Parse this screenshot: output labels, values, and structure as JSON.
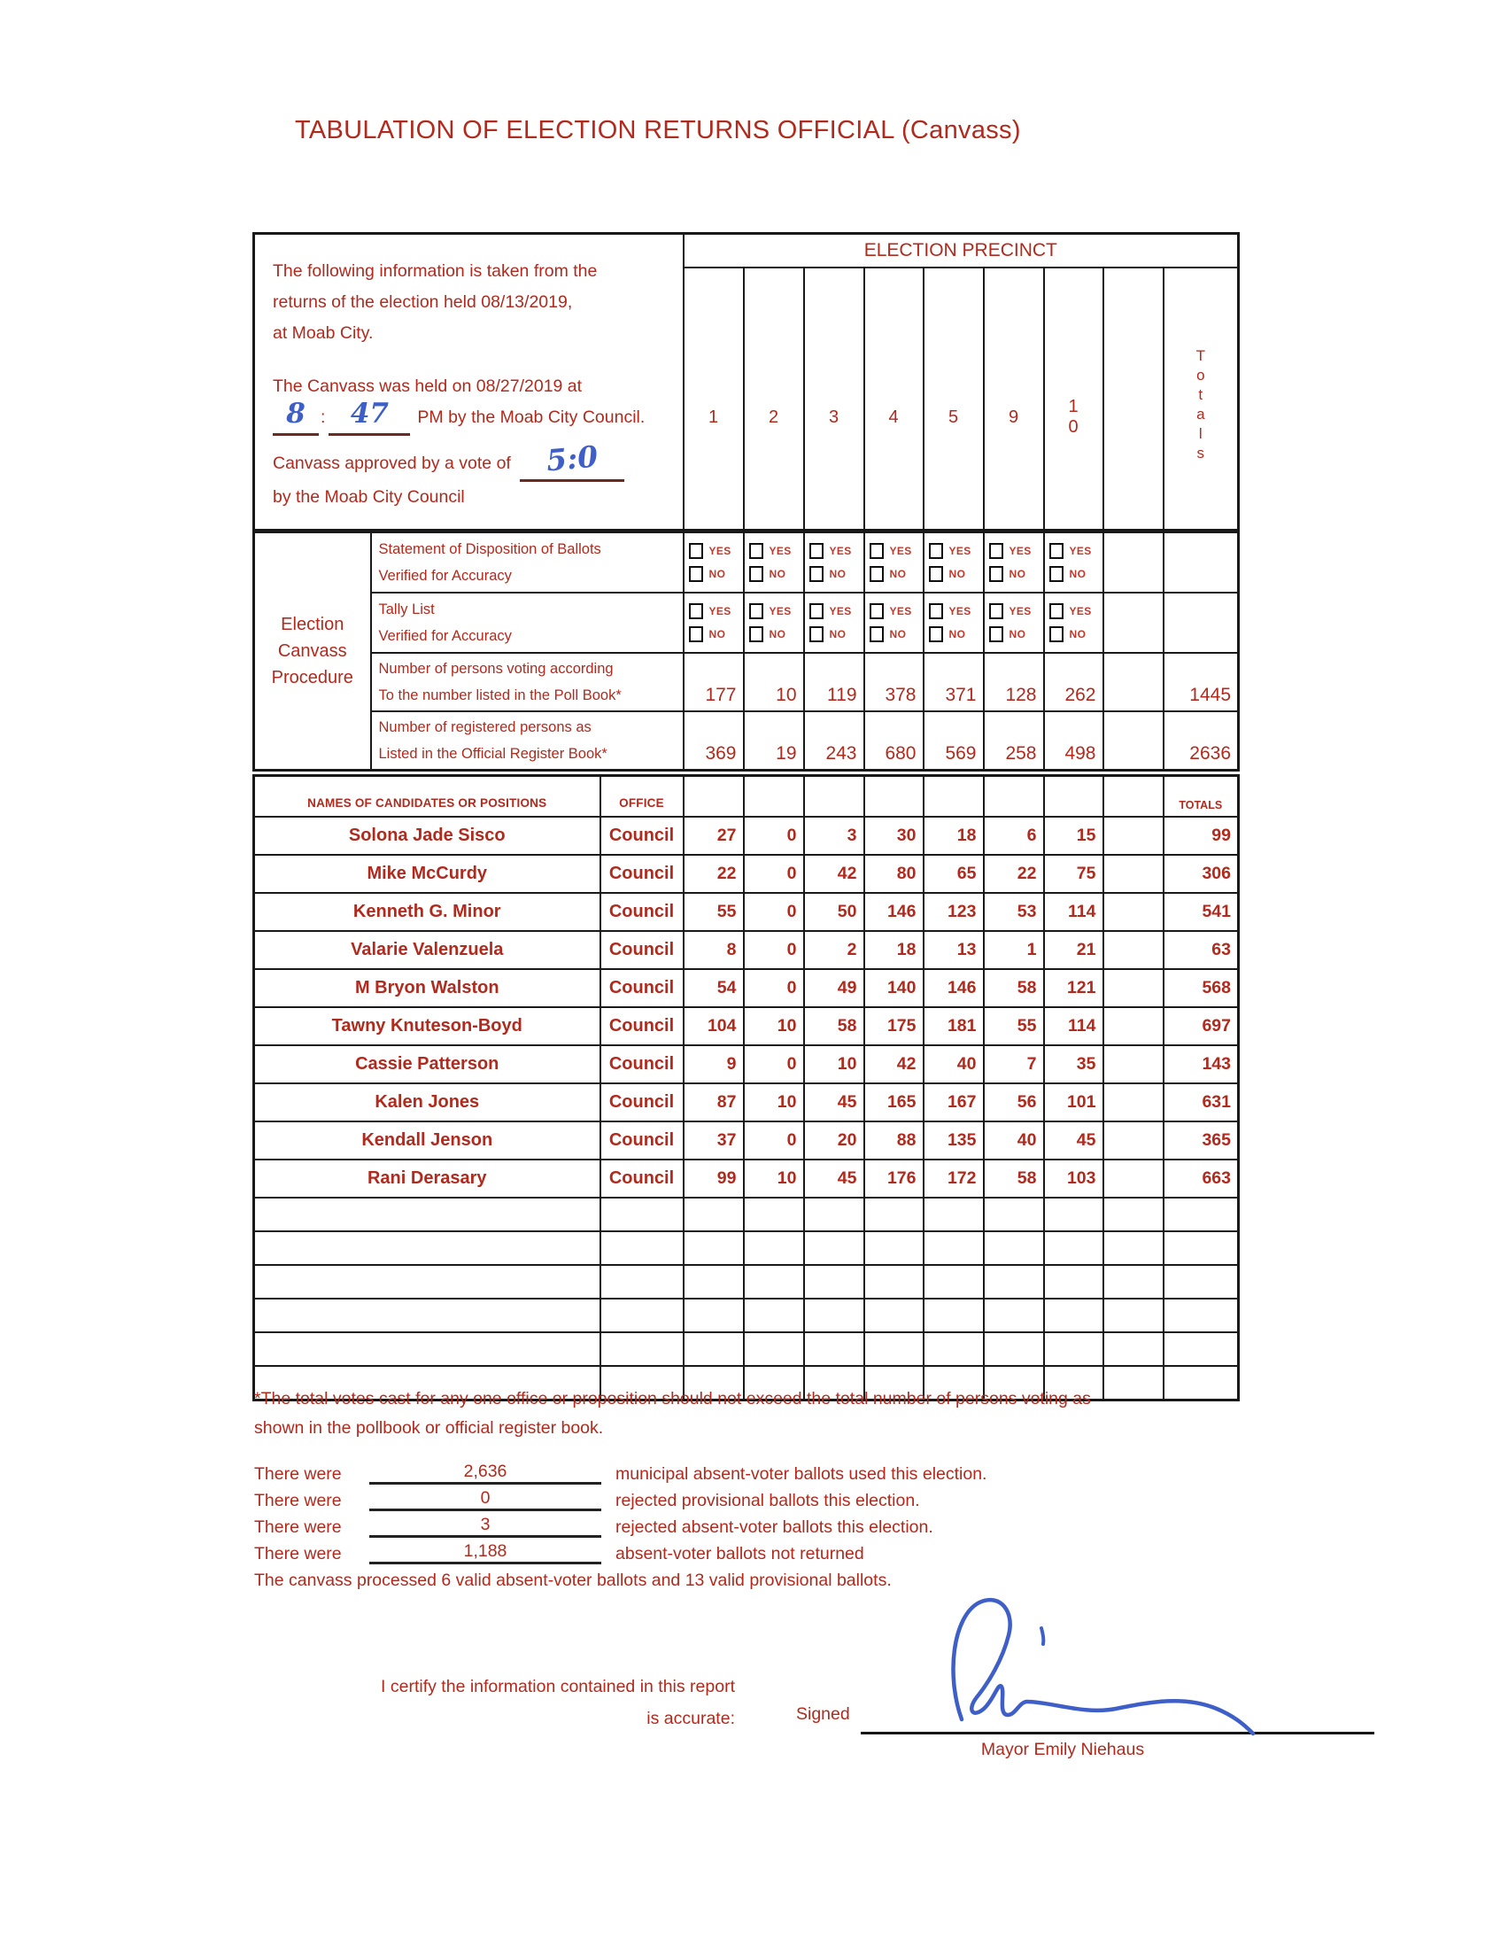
{
  "title": "TABULATION OF ELECTION RETURNS OFFICIAL (Canvass)",
  "info_box": {
    "line1": "The following information is taken from the",
    "line2": "returns of the election held  08/13/2019,",
    "line3": "at Moab City.",
    "canvass_held_line": "The Canvass was held on 08/27/2019 at",
    "time_hour": "8",
    "time_colon": ":",
    "time_minutes": "47",
    "canvass_held_rest": "PM by the Moab City Council.",
    "vote_line_prefix": "Canvass approved by a vote of",
    "vote_value": "5:0",
    "vote_line_suffix": "by the Moab City Council"
  },
  "precinct_header": "ELECTION PRECINCT",
  "precinct_columns": [
    "1",
    "2",
    "3",
    "4",
    "5",
    "9",
    "1\n0",
    ""
  ],
  "totals_vertical": "T\no\nt\na\nl\ns",
  "canvass": {
    "section_label": "Election\nCanvass\nProcedure",
    "yes_label": "YES",
    "no_label": "NO",
    "rows": [
      {
        "type": "checkbox",
        "desc_line1": "Statement of Disposition of Ballots",
        "desc_line2": "Verified for Accuracy"
      },
      {
        "type": "checkbox",
        "desc_line1": "Tally List",
        "desc_line2": "Verified for Accuracy"
      },
      {
        "type": "numbers",
        "desc_line1": "Number of persons voting according",
        "desc_line2": "To the number listed in the Poll Book*",
        "values": [
          "177",
          "10",
          "119",
          "378",
          "371",
          "128",
          "262",
          ""
        ],
        "total": "1445"
      },
      {
        "type": "numbers",
        "desc_line1": "Number of registered persons as",
        "desc_line2": "Listed in the Official Register Book*",
        "values": [
          "369",
          "19",
          "243",
          "680",
          "569",
          "258",
          "498",
          ""
        ],
        "total": "2636"
      }
    ]
  },
  "candidates": {
    "names_header": "NAMES OF CANDIDATES OR POSITIONS",
    "office_header": "OFFICE",
    "totals_header": "TOTALS",
    "rows": [
      {
        "name": "Solona Jade Sisco",
        "office": "Council",
        "values": [
          "27",
          "0",
          "3",
          "30",
          "18",
          "6",
          "15",
          ""
        ],
        "total": "99"
      },
      {
        "name": "Mike McCurdy",
        "office": "Council",
        "values": [
          "22",
          "0",
          "42",
          "80",
          "65",
          "22",
          "75",
          ""
        ],
        "total": "306"
      },
      {
        "name": "Kenneth G. Minor",
        "office": "Council",
        "values": [
          "55",
          "0",
          "50",
          "146",
          "123",
          "53",
          "114",
          ""
        ],
        "total": "541"
      },
      {
        "name": "Valarie Valenzuela",
        "office": "Council",
        "values": [
          "8",
          "0",
          "2",
          "18",
          "13",
          "1",
          "21",
          ""
        ],
        "total": "63"
      },
      {
        "name": "M Bryon Walston",
        "office": "Council",
        "values": [
          "54",
          "0",
          "49",
          "140",
          "146",
          "58",
          "121",
          ""
        ],
        "total": "568"
      },
      {
        "name": "Tawny Knuteson-Boyd",
        "office": "Council",
        "values": [
          "104",
          "10",
          "58",
          "175",
          "181",
          "55",
          "114",
          ""
        ],
        "total": "697"
      },
      {
        "name": "Cassie Patterson",
        "office": "Council",
        "values": [
          "9",
          "0",
          "10",
          "42",
          "40",
          "7",
          "35",
          ""
        ],
        "total": "143"
      },
      {
        "name": "Kalen Jones",
        "office": "Council",
        "values": [
          "87",
          "10",
          "45",
          "165",
          "167",
          "56",
          "101",
          ""
        ],
        "total": "631"
      },
      {
        "name": "Kendall Jenson",
        "office": "Council",
        "values": [
          "37",
          "0",
          "20",
          "88",
          "135",
          "40",
          "45",
          ""
        ],
        "total": "365"
      },
      {
        "name": "Rani Derasary",
        "office": "Council",
        "values": [
          "99",
          "10",
          "45",
          "176",
          "172",
          "58",
          "103",
          ""
        ],
        "total": "663"
      }
    ],
    "empty_row_count": 6
  },
  "footnote_line1": "*The total votes cast for any one office or proposition should not exceed the total number of persons voting as",
  "footnote_line2": "shown in the pollbook or official register book.",
  "ballot_lines": [
    {
      "prefix": "There were",
      "value": "2,636",
      "text": "municipal absent-voter ballots used this election."
    },
    {
      "prefix": "There were",
      "value": "0",
      "text": "rejected provisional ballots this election."
    },
    {
      "prefix": "There were",
      "value": "3",
      "text": "rejected absent-voter ballots this election."
    },
    {
      "prefix": "There were",
      "value": "1,188",
      "text": "absent-voter ballots not returned"
    }
  ],
  "processed_line": "The canvass processed 6 valid absent-voter ballots and 13 valid provisional ballots.",
  "certify": {
    "line1": "I certify the information contained in this report",
    "line2": "is accurate:",
    "signed_label": "Signed",
    "signer": "Mayor Emily Niehaus"
  },
  "colors": {
    "red_text": "#b02a1e",
    "blue_ink": "#3f5fc8"
  }
}
